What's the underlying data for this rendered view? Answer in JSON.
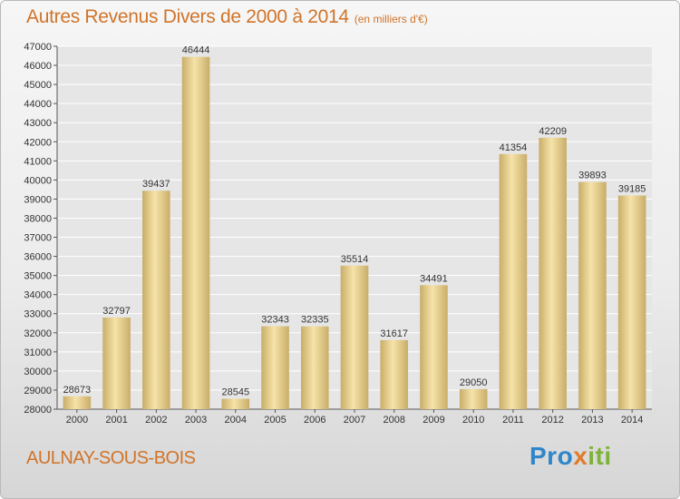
{
  "header": {
    "title": "Autres Revenus Divers de 2000 à 2014",
    "unit": "(en milliers d'€)"
  },
  "footer": {
    "city": "AULNAY-SOUS-BOIS",
    "brand": {
      "p1": "Pro",
      "p2": "x",
      "p3": "iti"
    }
  },
  "colors": {
    "title": "#d0742a",
    "bar_light": "#f6e3a8",
    "bar_dark": "#c9ad69",
    "grid": "#ffffff",
    "brand_blue": "#2f86c8",
    "brand_orange": "#e07b2a",
    "brand_green": "#7fb23a"
  },
  "chart_data": {
    "type": "bar",
    "title": "Autres Revenus Divers de 2000 à 2014",
    "subtitle": "(en milliers d'€)",
    "xlabel": "",
    "ylabel": "",
    "categories": [
      "2000",
      "2001",
      "2002",
      "2003",
      "2004",
      "2005",
      "2006",
      "2007",
      "2008",
      "2009",
      "2010",
      "2011",
      "2012",
      "2013",
      "2014"
    ],
    "values": [
      28673,
      32797,
      39437,
      46444,
      28545,
      32343,
      32335,
      35514,
      31617,
      34491,
      29050,
      41354,
      42209,
      39893,
      39185
    ],
    "ylim": [
      28000,
      47000
    ],
    "yticks": [
      28000,
      29000,
      30000,
      31000,
      32000,
      33000,
      34000,
      35000,
      36000,
      37000,
      38000,
      39000,
      40000,
      41000,
      42000,
      43000,
      44000,
      45000,
      46000,
      47000
    ],
    "grid": true,
    "data_labels": true
  }
}
